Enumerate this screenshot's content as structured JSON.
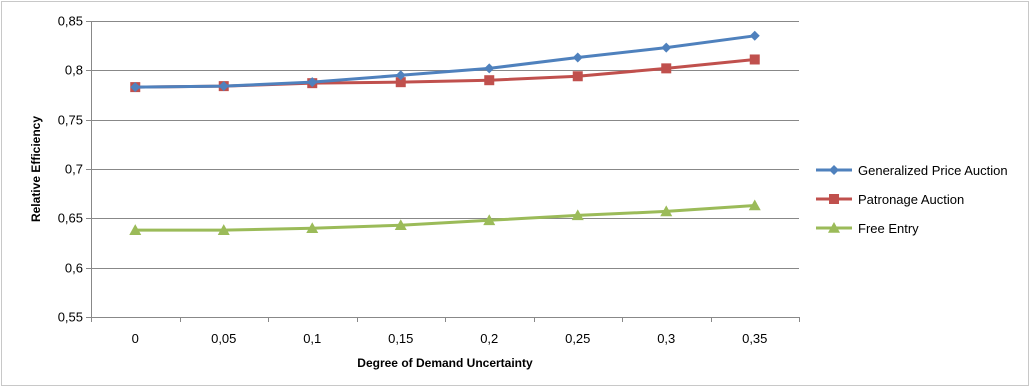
{
  "chart_data": {
    "type": "line",
    "title": "",
    "xlabel": "Degree of Demand Uncertainty",
    "ylabel": "Relative Efficiency",
    "categories": [
      "0",
      "0,05",
      "0,1",
      "0,15",
      "0,2",
      "0,25",
      "0,3",
      "0,35"
    ],
    "ylim": [
      0.55,
      0.85
    ],
    "yticks": [
      0.55,
      0.6,
      0.65,
      0.7,
      0.75,
      0.8,
      0.85
    ],
    "ytick_labels": [
      "0,55",
      "0,6",
      "0,65",
      "0,7",
      "0,75",
      "0,8",
      "0,85"
    ],
    "grid": true,
    "legend_position": "right",
    "series": [
      {
        "name": "Generalized Price Auction",
        "color": "#4F81BD",
        "marker": "diamond",
        "values": [
          0.783,
          0.784,
          0.788,
          0.795,
          0.802,
          0.813,
          0.823,
          0.835
        ]
      },
      {
        "name": "Patronage Auction",
        "color": "#C0504D",
        "marker": "square",
        "values": [
          0.783,
          0.784,
          0.787,
          0.788,
          0.79,
          0.794,
          0.802,
          0.811
        ]
      },
      {
        "name": "Free Entry",
        "color": "#9BBB59",
        "marker": "triangle",
        "values": [
          0.638,
          0.638,
          0.64,
          0.643,
          0.648,
          0.653,
          0.657,
          0.663
        ]
      }
    ]
  }
}
